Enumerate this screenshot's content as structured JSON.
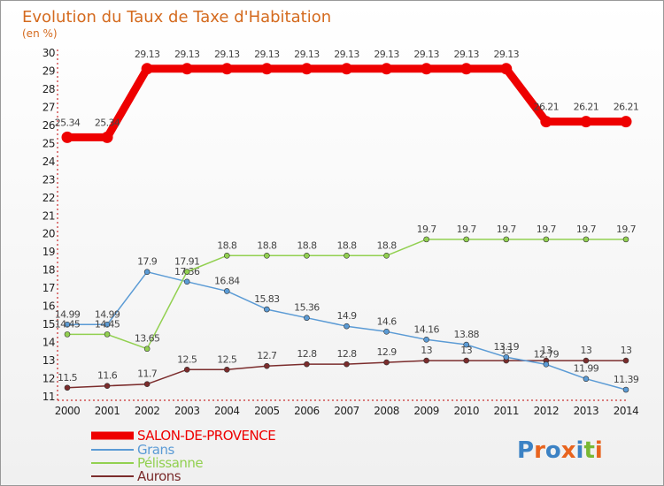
{
  "chart_data": {
    "type": "line",
    "title": "Evolution du Taux de Taxe d'Habitation",
    "subtitle": "(en %)",
    "xlabel": "",
    "ylabel": "",
    "ylim": [
      11,
      30
    ],
    "yticks": [
      11,
      12,
      13,
      14,
      15,
      16,
      17,
      18,
      19,
      20,
      21,
      22,
      23,
      24,
      25,
      26,
      27,
      28,
      29,
      30
    ],
    "categories": [
      "2000",
      "2001",
      "2002",
      "2003",
      "2004",
      "2005",
      "2006",
      "2007",
      "2008",
      "2009",
      "2010",
      "2011",
      "2012",
      "2013",
      "2014"
    ],
    "grid": false,
    "legend_position": "bottom-left",
    "series": [
      {
        "name": "SALON-DE-PROVENCE",
        "color": "#ee0000",
        "values": [
          25.34,
          25.34,
          29.13,
          29.13,
          29.13,
          29.13,
          29.13,
          29.13,
          29.13,
          29.13,
          29.13,
          29.13,
          26.21,
          26.21,
          26.21
        ],
        "labels": [
          "25.34",
          "25.34",
          "29.13",
          "29.13",
          "29.13",
          "29.13",
          "29.13",
          "29.13",
          "29.13",
          "29.13",
          "29.13",
          "29.13",
          "26.21",
          "26.21",
          "26.21"
        ]
      },
      {
        "name": "Grans",
        "color": "#5b9bd5",
        "values": [
          14.99,
          14.99,
          17.9,
          17.36,
          16.84,
          15.83,
          15.36,
          14.9,
          14.6,
          14.16,
          13.88,
          13.19,
          12.79,
          11.99,
          11.39
        ],
        "labels": [
          "14.99",
          "14.99",
          "17.9",
          "17.36",
          "16.84",
          "15.83",
          "15.36",
          "14.9",
          "14.6",
          "14.16",
          "13.88",
          "13.19",
          "12.79",
          "11.99",
          "11.39"
        ]
      },
      {
        "name": "Pélissanne",
        "color": "#92d050",
        "values": [
          14.45,
          14.45,
          13.65,
          17.91,
          18.8,
          18.8,
          18.8,
          18.8,
          18.8,
          19.7,
          19.7,
          19.7,
          19.7,
          19.7,
          19.7
        ],
        "labels": [
          "14.45",
          "14.45",
          "13.65",
          "17.91",
          "18.8",
          "18.8",
          "18.8",
          "18.8",
          "18.8",
          "19.7",
          "19.7",
          "19.7",
          "19.7",
          "19.7",
          "19.7"
        ]
      },
      {
        "name": "Aurons",
        "color": "#7b2c2c",
        "values": [
          11.5,
          11.6,
          11.7,
          12.5,
          12.5,
          12.7,
          12.8,
          12.8,
          12.9,
          13,
          13,
          13,
          13,
          13,
          13
        ],
        "labels": [
          "11.5",
          "11.6",
          "11.7",
          "12.5",
          "12.5",
          "12.7",
          "12.8",
          "12.8",
          "12.9",
          "13",
          "13",
          "13",
          "13",
          "13",
          "13"
        ]
      }
    ]
  },
  "logo": {
    "text": "Proxiti"
  }
}
